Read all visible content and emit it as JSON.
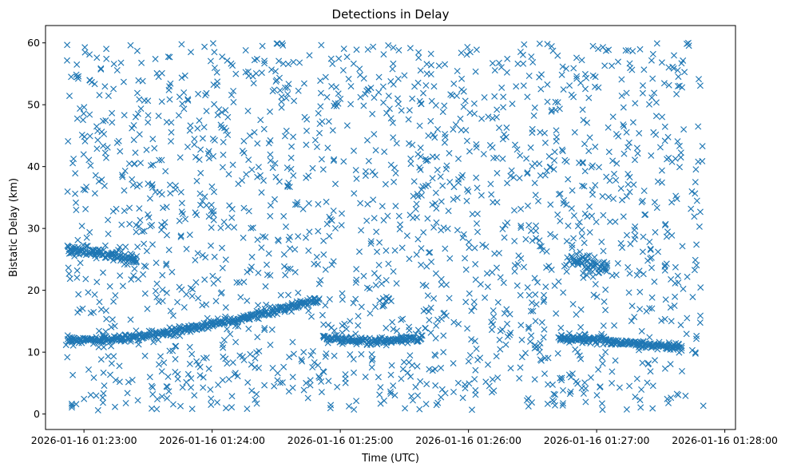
{
  "chart_data": {
    "type": "scatter",
    "title": "Detections in Delay",
    "xlabel": "Time (UTC)",
    "ylabel": "Bistatic Delay (km)",
    "marker": "x",
    "color": "#1f77b4",
    "xlim": [
      "2026-01-16 01:22:42",
      "2026-01-16 01:28:05"
    ],
    "ylim": [
      -2.5,
      62.8
    ],
    "xticks": [
      "2026-01-16 01:23:00",
      "2026-01-16 01:24:00",
      "2026-01-16 01:25:00",
      "2026-01-16 01:26:00",
      "2026-01-16 01:27:00",
      "2026-01-16 01:28:00"
    ],
    "yticks": [
      0,
      10,
      20,
      30,
      40,
      50,
      60
    ],
    "grid": false,
    "legend": "none",
    "series": [
      {
        "id": "track-a-rising",
        "points": [
          [
            "2026-01-16 01:22:52",
            12.0
          ],
          [
            "2026-01-16 01:23:10",
            12.0
          ],
          [
            "2026-01-16 01:23:30",
            12.7
          ],
          [
            "2026-01-16 01:23:50",
            13.9
          ],
          [
            "2026-01-16 01:24:10",
            15.2
          ],
          [
            "2026-01-16 01:24:30",
            16.7
          ],
          [
            "2026-01-16 01:24:50",
            18.6
          ]
        ]
      },
      {
        "id": "track-b-flat",
        "points": [
          [
            "2026-01-16 01:24:52",
            12.3
          ],
          [
            "2026-01-16 01:25:10",
            11.8
          ],
          [
            "2026-01-16 01:25:20",
            11.7
          ],
          [
            "2026-01-16 01:25:38",
            12.3
          ]
        ]
      },
      {
        "id": "track-c-descending",
        "points": [
          [
            "2026-01-16 01:26:42",
            12.3
          ],
          [
            "2026-01-16 01:27:00",
            12.0
          ],
          [
            "2026-01-16 01:27:20",
            11.3
          ],
          [
            "2026-01-16 01:27:40",
            10.8
          ]
        ]
      },
      {
        "id": "track-d-upper-left",
        "points": [
          [
            "2026-01-16 01:22:52",
            26.8
          ],
          [
            "2026-01-16 01:23:10",
            25.8
          ],
          [
            "2026-01-16 01:23:20",
            25.2
          ],
          [
            "2026-01-16 01:23:25",
            25.0
          ]
        ]
      },
      {
        "id": "track-e-upper-right",
        "points": [
          [
            "2026-01-16 01:26:48",
            25.0
          ],
          [
            "2026-01-16 01:27:00",
            24.0
          ],
          [
            "2026-01-16 01:27:05",
            23.5
          ]
        ]
      },
      {
        "id": "clutter",
        "count": 1800,
        "x_range": [
          "2026-01-16 01:22:52",
          "2026-01-16 01:27:50"
        ],
        "y_range": [
          0.5,
          60.0
        ]
      }
    ]
  }
}
